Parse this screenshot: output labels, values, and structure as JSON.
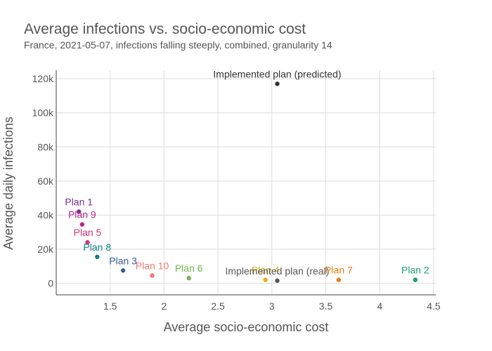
{
  "chart_data": {
    "type": "scatter",
    "title": "Average infections vs. socio-economic cost",
    "subtitle": "France, 2021-05-07, infections falling steeply, combined, granularity 14",
    "xlabel": "Average socio-economic cost",
    "ylabel": "Average daily infections",
    "xlim": [
      1.0,
      4.52
    ],
    "ylim": [
      -6800,
      125000
    ],
    "xticks": [
      1.5,
      2,
      2.5,
      3,
      3.5,
      4,
      4.5
    ],
    "xtick_labels": [
      "1.5",
      "2",
      "2.5",
      "3",
      "3.5",
      "4",
      "4.5"
    ],
    "yticks": [
      0,
      20000,
      40000,
      60000,
      80000,
      100000,
      120000
    ],
    "ytick_labels": [
      "0",
      "20k",
      "40k",
      "60k",
      "80k",
      "100k",
      "120k"
    ],
    "grid": true,
    "legend": "none",
    "points": [
      {
        "label": "Plan 1",
        "x": 1.21,
        "y": 42000,
        "color": "#7b2d8e"
      },
      {
        "label": "Plan 9",
        "x": 1.24,
        "y": 34500,
        "color": "#b5238c"
      },
      {
        "label": "Plan 5",
        "x": 1.29,
        "y": 24000,
        "color": "#d6307a"
      },
      {
        "label": "Plan 8",
        "x": 1.38,
        "y": 15500,
        "color": "#0e7f8c"
      },
      {
        "label": "Plan 3",
        "x": 1.62,
        "y": 7500,
        "color": "#3a5b9a"
      },
      {
        "label": "Plan 10",
        "x": 1.89,
        "y": 4500,
        "color": "#f47a6e"
      },
      {
        "label": "Plan 6",
        "x": 2.23,
        "y": 3000,
        "color": "#74b64e"
      },
      {
        "label": "Plan 4",
        "x": 2.94,
        "y": 2000,
        "color": "#e8b20c"
      },
      {
        "label": "Implemented plan (real)",
        "x": 3.05,
        "y": 1500,
        "color": "#555555"
      },
      {
        "label": "Plan 7",
        "x": 3.62,
        "y": 2000,
        "color": "#e87e0c"
      },
      {
        "label": "Plan 2",
        "x": 4.33,
        "y": 2000,
        "color": "#17a079"
      },
      {
        "label": "Implemented plan (predicted)",
        "x": 3.05,
        "y": 117000,
        "color": "#333333"
      }
    ]
  }
}
